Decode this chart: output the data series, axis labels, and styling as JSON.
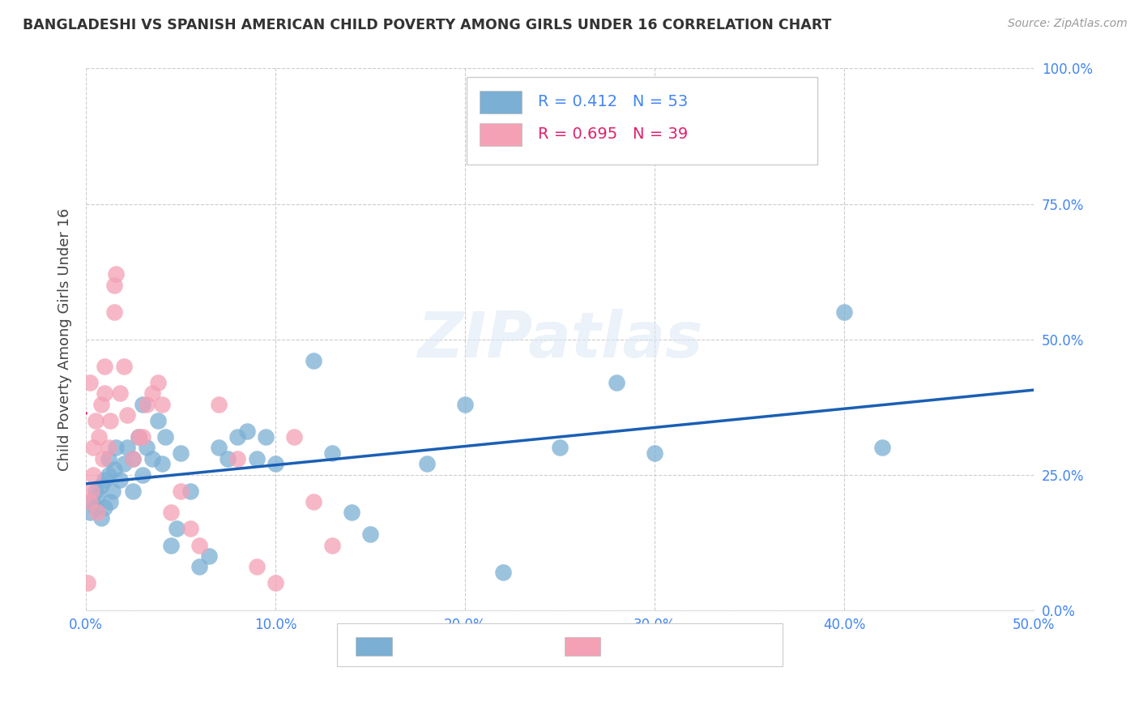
{
  "title": "BANGLADESHI VS SPANISH AMERICAN CHILD POVERTY AMONG GIRLS UNDER 16 CORRELATION CHART",
  "source": "Source: ZipAtlas.com",
  "ylabel": "Child Poverty Among Girls Under 16",
  "r_bangladeshi": 0.412,
  "n_bangladeshi": 53,
  "r_spanish": 0.695,
  "n_spanish": 39,
  "xlim": [
    0.0,
    0.5
  ],
  "ylim": [
    0.0,
    1.0
  ],
  "xticks": [
    0.0,
    0.1,
    0.2,
    0.3,
    0.4,
    0.5
  ],
  "yticks": [
    0.0,
    0.25,
    0.5,
    0.75,
    1.0
  ],
  "xticklabels": [
    "0.0%",
    "10.0%",
    "20.0%",
    "30.0%",
    "40.0%",
    "50.0%"
  ],
  "yticklabels": [
    "0.0%",
    "25.0%",
    "50.0%",
    "75.0%",
    "100.0%"
  ],
  "color_bangladeshi": "#7bafd4",
  "color_spanish": "#f4a0b5",
  "line_color_bangladeshi": "#1a5fb4",
  "line_color_spanish": "#e0206a",
  "watermark": "ZIPatlas",
  "bangladeshi_x": [
    0.002,
    0.003,
    0.005,
    0.005,
    0.006,
    0.008,
    0.008,
    0.01,
    0.01,
    0.012,
    0.012,
    0.013,
    0.014,
    0.015,
    0.016,
    0.018,
    0.02,
    0.022,
    0.025,
    0.025,
    0.028,
    0.03,
    0.03,
    0.032,
    0.035,
    0.038,
    0.04,
    0.042,
    0.045,
    0.048,
    0.05,
    0.055,
    0.06,
    0.065,
    0.07,
    0.075,
    0.08,
    0.085,
    0.09,
    0.095,
    0.1,
    0.12,
    0.13,
    0.14,
    0.15,
    0.18,
    0.2,
    0.22,
    0.25,
    0.28,
    0.3,
    0.4,
    0.42
  ],
  "bangladeshi_y": [
    0.18,
    0.2,
    0.19,
    0.22,
    0.21,
    0.17,
    0.23,
    0.19,
    0.24,
    0.28,
    0.25,
    0.2,
    0.22,
    0.26,
    0.3,
    0.24,
    0.27,
    0.3,
    0.22,
    0.28,
    0.32,
    0.25,
    0.38,
    0.3,
    0.28,
    0.35,
    0.27,
    0.32,
    0.12,
    0.15,
    0.29,
    0.22,
    0.08,
    0.1,
    0.3,
    0.28,
    0.32,
    0.33,
    0.28,
    0.32,
    0.27,
    0.46,
    0.29,
    0.18,
    0.14,
    0.27,
    0.38,
    0.07,
    0.3,
    0.42,
    0.29,
    0.55,
    0.3
  ],
  "spanish_x": [
    0.001,
    0.002,
    0.002,
    0.003,
    0.004,
    0.004,
    0.005,
    0.006,
    0.007,
    0.008,
    0.009,
    0.01,
    0.01,
    0.012,
    0.013,
    0.015,
    0.015,
    0.016,
    0.018,
    0.02,
    0.022,
    0.025,
    0.028,
    0.03,
    0.032,
    0.035,
    0.038,
    0.04,
    0.045,
    0.05,
    0.055,
    0.06,
    0.07,
    0.08,
    0.09,
    0.1,
    0.11,
    0.12,
    0.13
  ],
  "spanish_y": [
    0.05,
    0.2,
    0.42,
    0.22,
    0.25,
    0.3,
    0.35,
    0.18,
    0.32,
    0.38,
    0.28,
    0.4,
    0.45,
    0.3,
    0.35,
    0.6,
    0.55,
    0.62,
    0.4,
    0.45,
    0.36,
    0.28,
    0.32,
    0.32,
    0.38,
    0.4,
    0.42,
    0.38,
    0.18,
    0.22,
    0.15,
    0.12,
    0.38,
    0.28,
    0.08,
    0.05,
    0.32,
    0.2,
    0.12
  ]
}
